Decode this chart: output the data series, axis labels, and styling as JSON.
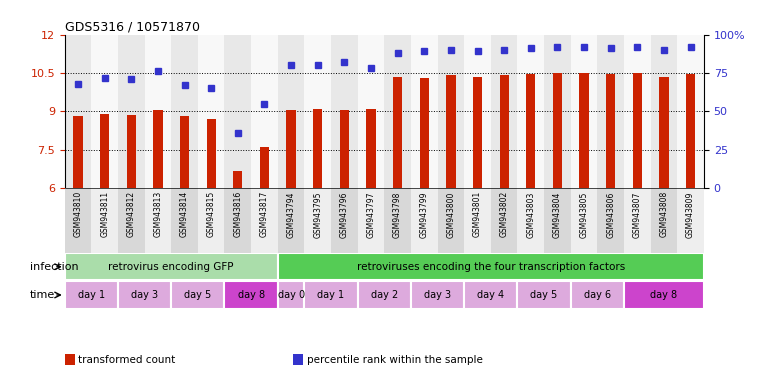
{
  "title": "GDS5316 / 10571870",
  "samples": [
    "GSM943810",
    "GSM943811",
    "GSM943812",
    "GSM943813",
    "GSM943814",
    "GSM943815",
    "GSM943816",
    "GSM943817",
    "GSM943794",
    "GSM943795",
    "GSM943796",
    "GSM943797",
    "GSM943798",
    "GSM943799",
    "GSM943800",
    "GSM943801",
    "GSM943802",
    "GSM943803",
    "GSM943804",
    "GSM943805",
    "GSM943806",
    "GSM943807",
    "GSM943808",
    "GSM943809"
  ],
  "red_values": [
    8.8,
    8.9,
    8.85,
    9.05,
    8.8,
    8.7,
    6.65,
    7.6,
    9.05,
    9.1,
    9.05,
    9.1,
    10.35,
    10.3,
    10.4,
    10.35,
    10.4,
    10.45,
    10.5,
    10.5,
    10.45,
    10.5,
    10.35,
    10.45
  ],
  "blue_values": [
    68,
    72,
    71,
    76,
    67,
    65,
    36,
    55,
    80,
    80,
    82,
    78,
    88,
    89,
    90,
    89,
    90,
    91,
    92,
    92,
    91,
    92,
    90,
    92
  ],
  "ylim_left": [
    6,
    12
  ],
  "ylim_right": [
    0,
    100
  ],
  "yticks_left": [
    6,
    7.5,
    9,
    10.5,
    12
  ],
  "yticks_right": [
    0,
    25,
    50,
    75,
    100
  ],
  "hlines": [
    7.5,
    9.0,
    10.5
  ],
  "bar_color": "#cc2200",
  "dot_color": "#3333cc",
  "infection_groups": [
    {
      "label": "retrovirus encoding GFP",
      "start": 0,
      "end": 8,
      "color": "#aaddaa"
    },
    {
      "label": "retroviruses encoding the four transcription factors",
      "start": 8,
      "end": 24,
      "color": "#55cc55"
    }
  ],
  "time_groups": [
    {
      "label": "day 1",
      "start": 0,
      "end": 2,
      "color": "#ddaadd"
    },
    {
      "label": "day 3",
      "start": 2,
      "end": 4,
      "color": "#ddaadd"
    },
    {
      "label": "day 5",
      "start": 4,
      "end": 6,
      "color": "#ddaadd"
    },
    {
      "label": "day 8",
      "start": 6,
      "end": 8,
      "color": "#cc44cc"
    },
    {
      "label": "day 0",
      "start": 8,
      "end": 9,
      "color": "#ddaadd"
    },
    {
      "label": "day 1",
      "start": 9,
      "end": 11,
      "color": "#ddaadd"
    },
    {
      "label": "day 2",
      "start": 11,
      "end": 13,
      "color": "#ddaadd"
    },
    {
      "label": "day 3",
      "start": 13,
      "end": 15,
      "color": "#ddaadd"
    },
    {
      "label": "day 4",
      "start": 15,
      "end": 17,
      "color": "#ddaadd"
    },
    {
      "label": "day 5",
      "start": 17,
      "end": 19,
      "color": "#ddaadd"
    },
    {
      "label": "day 6",
      "start": 19,
      "end": 21,
      "color": "#ddaadd"
    },
    {
      "label": "day 8",
      "start": 21,
      "end": 24,
      "color": "#cc44cc"
    }
  ],
  "legend_items": [
    {
      "color": "#cc2200",
      "label": "transformed count"
    },
    {
      "color": "#3333cc",
      "label": "percentile rank within the sample"
    }
  ],
  "xlabel_infection": "infection",
  "xlabel_time": "time",
  "bg_color": "#ffffff"
}
